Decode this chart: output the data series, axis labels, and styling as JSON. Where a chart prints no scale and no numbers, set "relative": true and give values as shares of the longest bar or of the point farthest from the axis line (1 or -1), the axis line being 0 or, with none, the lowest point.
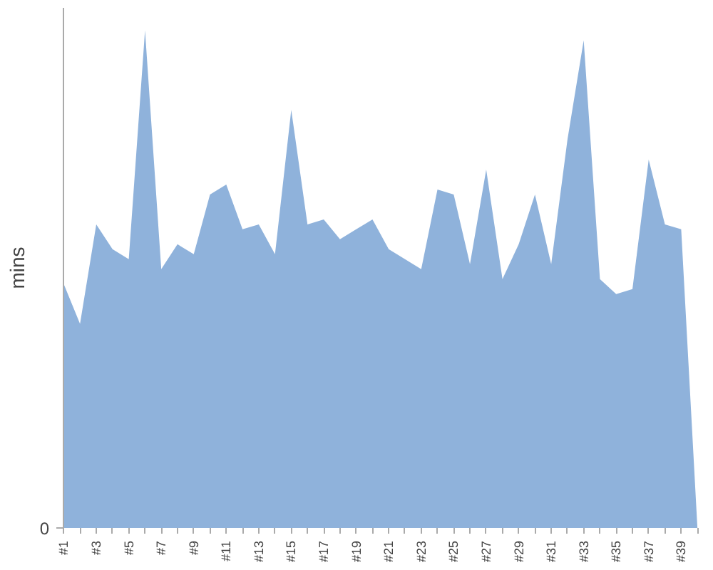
{
  "chart_data": {
    "type": "area",
    "ylabel": "mins",
    "relative": true,
    "annotations": [
      "0"
    ],
    "categories": [
      "#1",
      null,
      "#3",
      null,
      "#5",
      null,
      "#7",
      null,
      "#9",
      null,
      "#11",
      null,
      "#13",
      null,
      "#15",
      null,
      "#17",
      null,
      "#19",
      null,
      "#21",
      null,
      "#23",
      null,
      "#25",
      null,
      "#27",
      null,
      "#29",
      null,
      "#31",
      null,
      "#33",
      null,
      "#35",
      null,
      "#37",
      null,
      "#39",
      null
    ],
    "series": [
      {
        "color": "#8fb2db",
        "values": [
          0.49,
          0.41,
          0.61,
          0.56,
          0.54,
          1.0,
          0.52,
          0.57,
          0.55,
          0.67,
          0.69,
          0.6,
          0.61,
          0.55,
          0.84,
          0.61,
          0.62,
          0.58,
          0.6,
          0.62,
          0.56,
          0.54,
          0.52,
          0.68,
          0.67,
          0.53,
          0.72,
          0.5,
          0.57,
          0.67,
          0.53,
          0.78,
          0.98,
          0.5,
          0.47,
          0.48,
          0.74,
          0.61,
          0.6,
          0.0
        ]
      }
    ]
  }
}
